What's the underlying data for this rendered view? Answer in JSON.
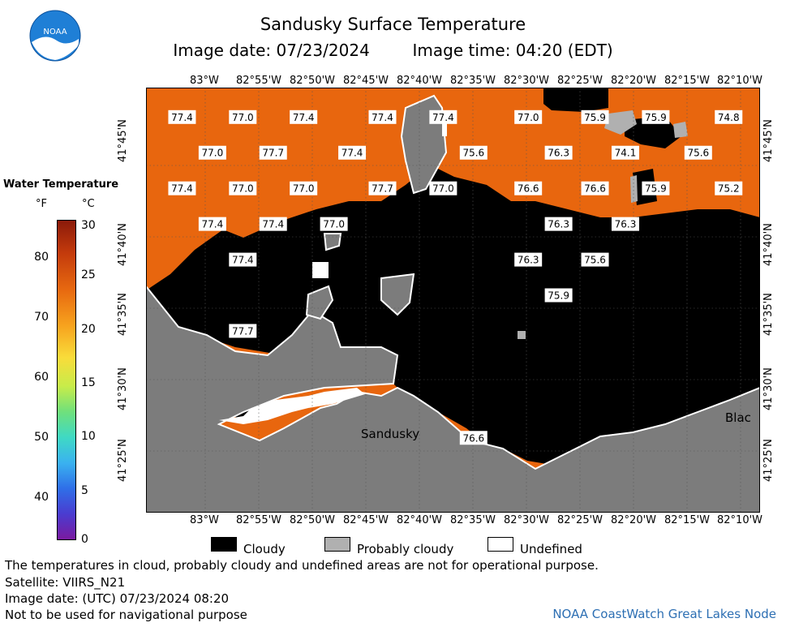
{
  "title": "Sandusky Surface Temperature",
  "image_date_label": "Image date: 07/23/2024",
  "image_time_label": "Image time: 04:20 (EDT)",
  "logo_text": "NOAA",
  "legend": {
    "title": "Water Temperature",
    "unit_f": "°F",
    "unit_c": "°C",
    "f_ticks": [
      "80",
      "70",
      "60",
      "50",
      "40"
    ],
    "c_ticks": [
      "30",
      "25",
      "20",
      "15",
      "10",
      "5",
      "0"
    ]
  },
  "map": {
    "top_lon_labels": [
      "83°W",
      "82°55'W",
      "82°50'W",
      "82°45'W",
      "82°40'W",
      "82°35'W",
      "82°30'W",
      "82°25'W",
      "82°20'W",
      "82°15'W",
      "82°10'W"
    ],
    "bottom_lon_labels": [
      "83°W",
      "82°55'W",
      "82°50'W",
      "82°45'W",
      "82°40'W",
      "82°35'W",
      "82°30'W",
      "82°25'W",
      "82°20'W",
      "82°15'W",
      "82°10'W"
    ],
    "lat_labels": [
      "41°45'N",
      "41°40'N",
      "41°35'N",
      "41°30'N",
      "41°25'N"
    ],
    "place_labels": [
      "Sandusky",
      "Blac"
    ],
    "temperatures": [
      {
        "value": "77.4",
        "lon": -83.05,
        "lat": 41.81
      },
      {
        "value": "77.0",
        "lon": -82.95,
        "lat": 41.81
      },
      {
        "value": "77.4",
        "lon": -82.85,
        "lat": 41.81
      },
      {
        "value": "77.4",
        "lon": -82.72,
        "lat": 41.81
      },
      {
        "value": "77.4",
        "lon": -82.62,
        "lat": 41.81
      },
      {
        "value": "77.0",
        "lon": -82.48,
        "lat": 41.81
      },
      {
        "value": "75.9",
        "lon": -82.37,
        "lat": 41.81
      },
      {
        "value": "75.9",
        "lon": -82.27,
        "lat": 41.81
      },
      {
        "value": "74.8",
        "lon": -82.15,
        "lat": 41.81
      },
      {
        "value": "77.0",
        "lon": -83.0,
        "lat": 41.77
      },
      {
        "value": "77.7",
        "lon": -82.9,
        "lat": 41.77
      },
      {
        "value": "77.4",
        "lon": -82.77,
        "lat": 41.77
      },
      {
        "value": "75.6",
        "lon": -82.57,
        "lat": 41.77
      },
      {
        "value": "76.3",
        "lon": -82.43,
        "lat": 41.77
      },
      {
        "value": "74.1",
        "lon": -82.32,
        "lat": 41.77
      },
      {
        "value": "75.6",
        "lon": -82.2,
        "lat": 41.77
      },
      {
        "value": "77.4",
        "lon": -83.05,
        "lat": 41.73
      },
      {
        "value": "77.0",
        "lon": -82.95,
        "lat": 41.73
      },
      {
        "value": "77.0",
        "lon": -82.85,
        "lat": 41.73
      },
      {
        "value": "77.7",
        "lon": -82.72,
        "lat": 41.73
      },
      {
        "value": "77.0",
        "lon": -82.62,
        "lat": 41.73
      },
      {
        "value": "76.6",
        "lon": -82.48,
        "lat": 41.73
      },
      {
        "value": "76.6",
        "lon": -82.37,
        "lat": 41.73
      },
      {
        "value": "75.9",
        "lon": -82.27,
        "lat": 41.73
      },
      {
        "value": "75.2",
        "lon": -82.15,
        "lat": 41.73
      },
      {
        "value": "77.4",
        "lon": -83.0,
        "lat": 41.69
      },
      {
        "value": "77.4",
        "lon": -82.9,
        "lat": 41.69
      },
      {
        "value": "77.0",
        "lon": -82.8,
        "lat": 41.69
      },
      {
        "value": "76.3",
        "lon": -82.43,
        "lat": 41.69
      },
      {
        "value": "76.3",
        "lon": -82.32,
        "lat": 41.69
      },
      {
        "value": "77.4",
        "lon": -82.95,
        "lat": 41.65
      },
      {
        "value": "76.3",
        "lon": -82.48,
        "lat": 41.65
      },
      {
        "value": "75.6",
        "lon": -82.37,
        "lat": 41.65
      },
      {
        "value": "75.9",
        "lon": -82.43,
        "lat": 41.61
      },
      {
        "value": "77.7",
        "lon": -82.95,
        "lat": 41.57
      },
      {
        "value": "76.6",
        "lon": -82.57,
        "lat": 41.45
      }
    ]
  },
  "key": {
    "cloudy": "Cloudy",
    "probably_cloudy": "Probably cloudy",
    "undefined": "Undefined",
    "colors": {
      "cloudy": "#000000",
      "probably_cloudy": "#b0b0b0",
      "undefined": "#ffffff",
      "water": "#e8660e",
      "land": "#7c7c7c"
    }
  },
  "footer": {
    "disclaimer": "The temperatures in cloud, probably cloudy and undefined areas are not for operational purpose.",
    "satellite": "Satellite: VIIRS_N21",
    "utc_date": "Image date: (UTC) 07/23/2024  08:20",
    "nav_warning": "Not to be used for navigational purpose",
    "credit": "NOAA CoastWatch Great Lakes Node"
  }
}
